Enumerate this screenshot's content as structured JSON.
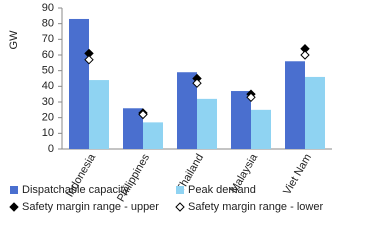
{
  "chart_data": {
    "type": "bar",
    "y_label": "GW",
    "categories": [
      "Indonesia",
      "Philippines",
      "Thailand",
      "Malaysia",
      "Viet Nam"
    ],
    "series": [
      {
        "name": "Dispatchable capacity",
        "color": "#4a6fcf",
        "kind": "bar",
        "values": [
          83,
          26,
          49,
          37,
          56
        ]
      },
      {
        "name": "Peak demand",
        "color": "#8fd3f2",
        "kind": "bar",
        "values": [
          44,
          17,
          32,
          25,
          46
        ]
      },
      {
        "name": "Safety margin range - upper",
        "color": "#000000",
        "kind": "marker",
        "marker_fill": "#000000",
        "values": [
          61,
          23,
          45,
          35,
          64
        ]
      },
      {
        "name": "Safety margin range - lower",
        "color": "#000000",
        "kind": "marker",
        "marker_fill": "#ffffff",
        "values": [
          57,
          22,
          42,
          33,
          60
        ]
      }
    ],
    "ylim": [
      0,
      90
    ],
    "yticks": [
      0,
      10,
      20,
      30,
      40,
      50,
      60,
      70,
      80,
      90
    ],
    "grid": false
  }
}
